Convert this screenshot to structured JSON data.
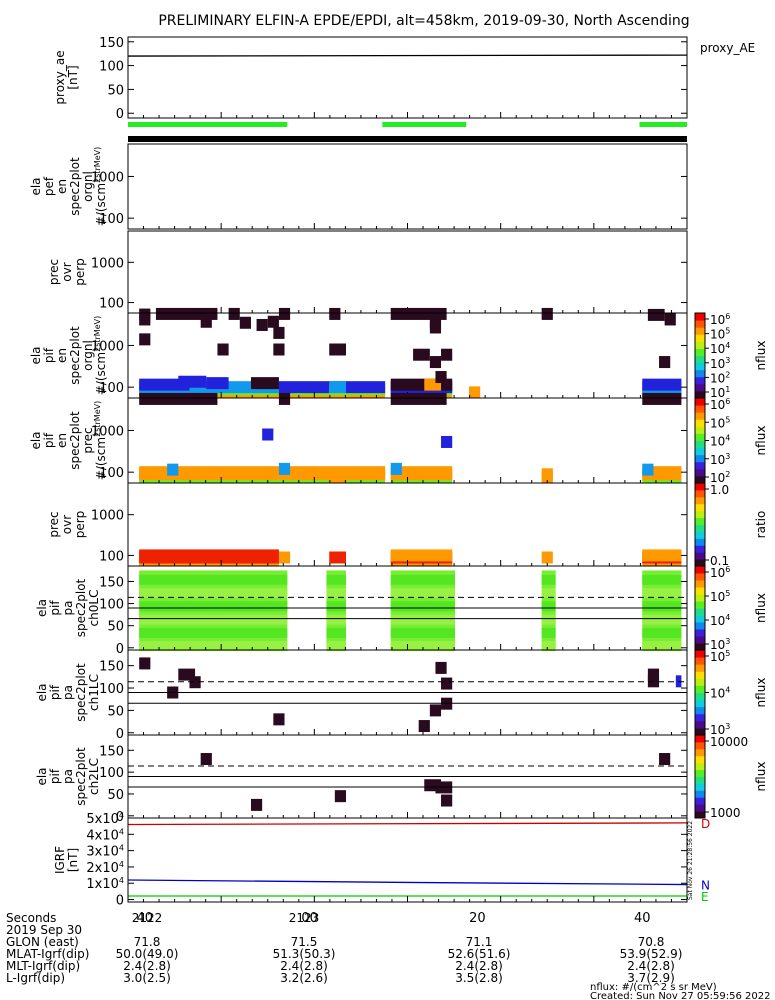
{
  "title": "PRELIMINARY ELFIN-A EPDE/EPDI, alt=458km, 2019-09-30, North Ascending",
  "legend_proxy": "proxy_AE",
  "footer": {
    "units": "nflux: #/(cm^2 s sr MeV)",
    "created": "Created: Sun Nov 27 05:59:56 2022",
    "side_stamp": "Sat Nov 26 21:28:56 2022"
  },
  "x_ticks": [
    "40",
    "00",
    "20",
    "40"
  ],
  "info_rows": [
    {
      "label": "Seconds",
      "values": [
        "2122",
        "2123",
        "",
        ""
      ]
    },
    {
      "label": "2019 Sep 30",
      "values": []
    },
    {
      "label": "GLON (east)",
      "values": [
        "71.8",
        "71.5",
        "71.1",
        "70.8"
      ]
    },
    {
      "label": "MLAT-Igrf(dip)",
      "values": [
        "50.0(49.0)",
        "51.3(50.3)",
        "52.6(51.6)",
        "53.9(52.9)"
      ]
    },
    {
      "label": "MLT-Igrf(dip)",
      "values": [
        "2.4(2.8)",
        "2.4(2.8)",
        "2.4(2.8)",
        "2.4(2.8)"
      ]
    },
    {
      "label": "L-Igrf(dip)",
      "values": [
        "3.0(2.5)",
        "3.2(2.6)",
        "3.5(2.8)",
        "3.7(2.9)"
      ]
    }
  ],
  "colorbars": [
    {
      "title": "nflux",
      "ticks": [
        "10^1",
        "10^2",
        "10^3",
        "10^4",
        "10^5",
        "10^6"
      ]
    },
    {
      "title": "nflux",
      "ticks": [
        "10^2",
        "10^3",
        "10^4",
        "10^5",
        "10^6"
      ]
    },
    {
      "title": "ratio",
      "ticks": [
        "0.1",
        "1.0"
      ]
    },
    {
      "title": "nflux",
      "ticks": [
        "10^3",
        "10^4",
        "10^5",
        "10^6"
      ]
    },
    {
      "title": "nflux",
      "ticks": [
        "10^3",
        "10^4",
        "10^5"
      ]
    },
    {
      "title": "nflux",
      "ticks": [
        "1000",
        "10000"
      ]
    }
  ],
  "igrf_labels": [
    "D",
    "N",
    "E"
  ],
  "colors": {
    "spec_orange": "#ff9900",
    "spec_green": "#66ee22",
    "spec_cyan": "#1199ee",
    "spec_blue": "#2222dd",
    "spec_dark": "#2a0a1e",
    "spec_red": "#ee2200",
    "bar_green": "#22ee22",
    "igrf_d": "#cc0000",
    "igrf_n": "#0000cc",
    "igrf_e": "#00cc00"
  },
  "chart_data": [
    {
      "type": "line",
      "panel": "proxy_ae",
      "ylabel_lines": [
        "proxy_ae",
        "[nT]"
      ],
      "ytick_labels": [
        "0",
        "50",
        "100",
        "150"
      ],
      "ylim": [
        -10,
        160
      ],
      "series": [
        {
          "name": "proxy_AE",
          "x": [
            0,
            1
          ],
          "y": [
            120,
            122
          ]
        }
      ],
      "science_zone_bars": [
        [
          0,
          0.285
        ],
        [
          0.455,
          0.605
        ],
        [
          0.915,
          1.0
        ]
      ]
    },
    {
      "type": "heatmap",
      "panel": "ela pef en spec2plot orgnl",
      "ylabel_lines": [
        "ela",
        "pef",
        "en",
        "spec2plot",
        "orgnl",
        "#/(scm^2strMeV)"
      ],
      "ytick_labels": [
        "100",
        "1000"
      ],
      "ylim": [
        55,
        6000
      ],
      "yscale": "log",
      "cells": []
    },
    {
      "type": "heatmap",
      "panel": "pef prec ovr perp",
      "ylabel_lines": [
        "prec",
        "ovr",
        "perp"
      ],
      "ytick_labels": [
        "100",
        "1000"
      ],
      "ylim": [
        55,
        6000
      ],
      "yscale": "log",
      "cells": []
    },
    {
      "type": "heatmap",
      "panel": "ela pif en spec2plot orgnl",
      "ylabel_lines": [
        "ela",
        "pif",
        "en",
        "spec2plot",
        "orgnl",
        "#/(scm^2strMeV)"
      ],
      "ytick_labels": [
        "100",
        "1000"
      ],
      "ylim": [
        55,
        6000
      ],
      "yscale": "log",
      "cells": [
        [
          0.02,
          0.46,
          75,
          "spec_orange"
        ],
        [
          0.02,
          0.46,
          89,
          "spec_green"
        ],
        [
          0.02,
          0.27,
          100,
          "spec_cyan"
        ],
        [
          0.27,
          0.46,
          100,
          "spec_blue"
        ],
        [
          0.02,
          0.11,
          115,
          "spec_blue"
        ],
        [
          0.09,
          0.14,
          135,
          "spec_blue"
        ],
        [
          0.14,
          0.18,
          125,
          "spec_blue"
        ],
        [
          0.22,
          0.27,
          125,
          "spec_dark"
        ],
        [
          0.36,
          0.39,
          75,
          "spec_orange"
        ],
        [
          0.36,
          0.39,
          89,
          "spec_green"
        ],
        [
          0.36,
          0.39,
          100,
          "spec_cyan"
        ],
        [
          0.47,
          0.58,
          75,
          "spec_orange"
        ],
        [
          0.47,
          0.58,
          89,
          "spec_green"
        ],
        [
          0.47,
          0.58,
          100,
          "spec_blue"
        ],
        [
          0.47,
          0.58,
          115,
          "spec_dark"
        ],
        [
          0.53,
          0.56,
          115,
          "spec_orange"
        ],
        [
          0.55,
          0.57,
          175,
          "spec_dark"
        ],
        [
          0.61,
          0.63,
          75,
          "spec_orange"
        ],
        [
          0.92,
          0.99,
          75,
          "spec_orange"
        ],
        [
          0.92,
          0.99,
          89,
          "spec_green"
        ],
        [
          0.92,
          0.99,
          100,
          "spec_cyan"
        ],
        [
          0.92,
          0.99,
          115,
          "spec_blue"
        ],
        [
          0.02,
          0.04,
          5500,
          "spec_dark"
        ],
        [
          0.02,
          0.04,
          4200,
          "spec_dark"
        ],
        [
          0.02,
          0.04,
          1400,
          "spec_dark"
        ],
        [
          0.05,
          0.16,
          5700,
          "spec_dark"
        ],
        [
          0.13,
          0.15,
          3700,
          "spec_dark"
        ],
        [
          0.16,
          0.18,
          800,
          "spec_dark"
        ],
        [
          0.18,
          0.2,
          5700,
          "spec_dark"
        ],
        [
          0.2,
          0.22,
          3500,
          "spec_dark"
        ],
        [
          0.23,
          0.25,
          3100,
          "spec_dark"
        ],
        [
          0.25,
          0.27,
          3700,
          "spec_dark"
        ],
        [
          0.26,
          0.28,
          2000,
          "spec_dark"
        ],
        [
          0.26,
          0.28,
          800,
          "spec_dark"
        ],
        [
          0.27,
          0.29,
          5700,
          "spec_dark"
        ],
        [
          0.36,
          0.39,
          800,
          "spec_dark"
        ],
        [
          0.36,
          0.38,
          5700,
          "spec_dark"
        ],
        [
          0.47,
          0.57,
          5700,
          "spec_dark"
        ],
        [
          0.54,
          0.56,
          3700,
          "spec_dark"
        ],
        [
          0.54,
          0.56,
          2700,
          "spec_dark"
        ],
        [
          0.51,
          0.54,
          600,
          "spec_dark"
        ],
        [
          0.54,
          0.56,
          400,
          "spec_dark"
        ],
        [
          0.56,
          0.58,
          600,
          "spec_dark"
        ],
        [
          0.74,
          0.76,
          5700,
          "spec_dark"
        ],
        [
          0.95,
          0.97,
          400,
          "spec_dark"
        ],
        [
          0.93,
          0.96,
          5400,
          "spec_dark"
        ],
        [
          0.96,
          0.98,
          4200,
          "spec_dark"
        ]
      ]
    },
    {
      "type": "heatmap",
      "panel": "ela pif en spec2plot prec",
      "ylabel_lines": [
        "ela",
        "pif",
        "en",
        "spec2plot",
        "prec",
        "#/(scm^2strMeV)"
      ],
      "ytick_labels": [
        "100",
        "1000"
      ],
      "ylim": [
        55,
        6000
      ],
      "yscale": "log",
      "cells": [
        [
          0.02,
          0.46,
          75,
          "spec_green"
        ],
        [
          0.02,
          0.46,
          89,
          "spec_orange"
        ],
        [
          0.02,
          0.46,
          100,
          "spec_orange"
        ],
        [
          0.07,
          0.09,
          115,
          "spec_cyan"
        ],
        [
          0.24,
          0.26,
          800,
          "spec_blue"
        ],
        [
          0.27,
          0.29,
          120,
          "spec_cyan"
        ],
        [
          0.36,
          0.39,
          75,
          "spec_orange"
        ],
        [
          0.36,
          0.39,
          89,
          "spec_orange"
        ],
        [
          0.47,
          0.58,
          75,
          "spec_green"
        ],
        [
          0.47,
          0.58,
          89,
          "spec_orange"
        ],
        [
          0.47,
          0.58,
          100,
          "spec_orange"
        ],
        [
          0.47,
          0.49,
          120,
          "spec_cyan"
        ],
        [
          0.56,
          0.58,
          530,
          "spec_blue"
        ],
        [
          0.74,
          0.76,
          75,
          "spec_orange"
        ],
        [
          0.74,
          0.76,
          89,
          "spec_orange"
        ],
        [
          0.92,
          0.99,
          75,
          "spec_green"
        ],
        [
          0.92,
          0.99,
          89,
          "spec_orange"
        ],
        [
          0.92,
          0.99,
          100,
          "spec_orange"
        ],
        [
          0.92,
          0.94,
          115,
          "spec_cyan"
        ],
        [
          0.02,
          0.16,
          5700,
          "spec_dark"
        ],
        [
          0.27,
          0.29,
          5700,
          "spec_dark"
        ],
        [
          0.47,
          0.57,
          5700,
          "spec_dark"
        ],
        [
          0.92,
          0.99,
          5700,
          "spec_dark"
        ]
      ]
    },
    {
      "type": "heatmap",
      "panel": "pif prec ovr perp",
      "ylabel_lines": [
        "prec",
        "ovr",
        "perp"
      ],
      "ytick_labels": [
        "100",
        "1000"
      ],
      "ylim": [
        55,
        6000
      ],
      "yscale": "log",
      "cells": [
        [
          0.02,
          0.27,
          75,
          "spec_orange"
        ],
        [
          0.02,
          0.27,
          89,
          "spec_red"
        ],
        [
          0.02,
          0.27,
          100,
          "spec_red"
        ],
        [
          0.27,
          0.29,
          89,
          "spec_orange"
        ],
        [
          0.36,
          0.39,
          89,
          "spec_red"
        ],
        [
          0.47,
          0.58,
          75,
          "spec_orange"
        ],
        [
          0.47,
          0.58,
          89,
          "spec_red"
        ],
        [
          0.47,
          0.58,
          100,
          "spec_orange"
        ],
        [
          0.74,
          0.76,
          89,
          "spec_orange"
        ],
        [
          0.92,
          0.99,
          75,
          "spec_orange"
        ],
        [
          0.92,
          0.99,
          89,
          "spec_red"
        ],
        [
          0.92,
          0.99,
          100,
          "spec_orange"
        ]
      ]
    },
    {
      "type": "heatmap",
      "panel": "ela pif pa spec2plot ch0LC",
      "ylabel_lines": [
        "ela",
        "pif",
        "pa",
        "spec2plot",
        "ch0LC"
      ],
      "ytick_labels": [
        "0",
        "50",
        "100",
        "150"
      ],
      "ylim": [
        -5,
        185
      ],
      "yscale": "linear",
      "green_bands": [
        [
          0.02,
          0.285
        ],
        [
          0.355,
          0.39
        ],
        [
          0.47,
          0.585
        ],
        [
          0.74,
          0.765
        ],
        [
          0.92,
          0.99
        ]
      ],
      "hlines": [
        {
          "y": 114,
          "style": "dashed"
        },
        {
          "y": 90,
          "style": "solid"
        },
        {
          "y": 66,
          "style": "solid"
        }
      ]
    },
    {
      "type": "heatmap",
      "panel": "ela pif pa spec2plot ch1LC",
      "ylabel_lines": [
        "ela",
        "pif",
        "pa",
        "spec2plot",
        "ch1LC"
      ],
      "ytick_labels": [
        "0",
        "50",
        "100",
        "150"
      ],
      "ylim": [
        -5,
        185
      ],
      "yscale": "linear",
      "cells": [
        [
          0.02,
          0.04,
          155,
          "spec_dark"
        ],
        [
          0.07,
          0.09,
          90,
          "spec_dark"
        ],
        [
          0.09,
          0.12,
          130,
          "spec_dark"
        ],
        [
          0.11,
          0.13,
          113,
          "spec_dark"
        ],
        [
          0.26,
          0.28,
          30,
          "spec_dark"
        ],
        [
          0.52,
          0.54,
          15,
          "spec_dark"
        ],
        [
          0.54,
          0.56,
          50,
          "spec_dark"
        ],
        [
          0.55,
          0.57,
          145,
          "spec_dark"
        ],
        [
          0.56,
          0.58,
          110,
          "spec_dark"
        ],
        [
          0.56,
          0.58,
          65,
          "spec_dark"
        ],
        [
          0.93,
          0.95,
          130,
          "spec_dark"
        ],
        [
          0.93,
          0.95,
          115,
          "spec_dark"
        ],
        [
          0.98,
          0.99,
          115,
          "spec_blue"
        ]
      ],
      "hlines": [
        {
          "y": 114,
          "style": "dashed"
        },
        {
          "y": 90,
          "style": "solid"
        },
        {
          "y": 66,
          "style": "solid"
        }
      ]
    },
    {
      "type": "heatmap",
      "panel": "ela pif pa spec2plot ch2LC",
      "ylabel_lines": [
        "ela",
        "pif",
        "pa",
        "spec2plot",
        "ch2LC"
      ],
      "ytick_labels": [
        "0",
        "50",
        "100",
        "150"
      ],
      "ylim": [
        -5,
        185
      ],
      "yscale": "linear",
      "cells": [
        [
          0.13,
          0.15,
          130,
          "spec_dark"
        ],
        [
          0.22,
          0.24,
          25,
          "spec_dark"
        ],
        [
          0.37,
          0.39,
          45,
          "spec_dark"
        ],
        [
          0.53,
          0.56,
          70,
          "spec_dark"
        ],
        [
          0.55,
          0.58,
          65,
          "spec_dark"
        ],
        [
          0.56,
          0.58,
          35,
          "spec_dark"
        ],
        [
          0.95,
          0.97,
          130,
          "spec_dark"
        ]
      ],
      "hlines": [
        {
          "y": 114,
          "style": "dashed"
        },
        {
          "y": 90,
          "style": "solid"
        },
        {
          "y": 66,
          "style": "solid"
        }
      ]
    },
    {
      "type": "line",
      "panel": "IGRF",
      "ylabel_lines": [
        "IGRF",
        "[nT]"
      ],
      "ytick_labels": [
        "0",
        "1x10^4",
        "2x10^4",
        "3x10^4",
        "4x10^4",
        "5x10^4"
      ],
      "ylim": [
        -1500,
        50000
      ],
      "series": [
        {
          "name": "D",
          "color": "igrf_d",
          "x": [
            0,
            1
          ],
          "y": [
            46000,
            47000
          ]
        },
        {
          "name": "N",
          "color": "igrf_n",
          "x": [
            0,
            0.5,
            1
          ],
          "y": [
            12000,
            10500,
            9200
          ]
        },
        {
          "name": "E",
          "color": "igrf_e",
          "x": [
            0,
            1
          ],
          "y": [
            2200,
            2200
          ]
        }
      ]
    }
  ]
}
